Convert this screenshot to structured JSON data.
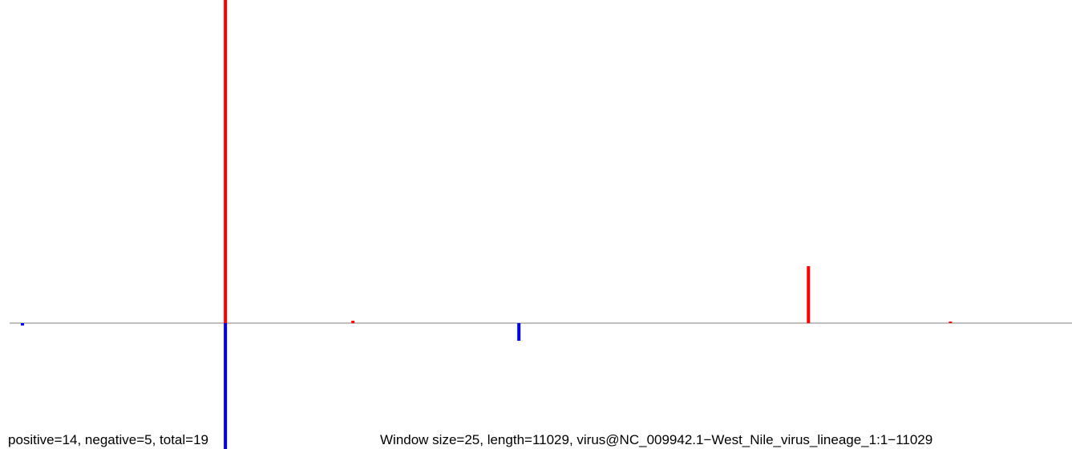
{
  "chart_data": {
    "type": "bar",
    "footer_left": "positive=14, negative=5, total=19",
    "footer_right": "Window size=25, length=11029, virus@NC_009942.1−West_Nile_virus_lineage_1:1−11029",
    "x": [
      133,
      2240,
      3564,
      5287,
      8293,
      9767
    ],
    "xlim": [
      0,
      11029
    ],
    "ylim": [
      -157,
      403
    ],
    "series": [
      {
        "color": "#ff0000",
        "values": [
          null,
          403,
          3,
          null,
          71,
          2
        ]
      },
      {
        "color": "#0000ff",
        "values": [
          -3,
          -157,
          null,
          -22,
          null,
          null
        ]
      }
    ],
    "baseline_color": "#808080"
  }
}
